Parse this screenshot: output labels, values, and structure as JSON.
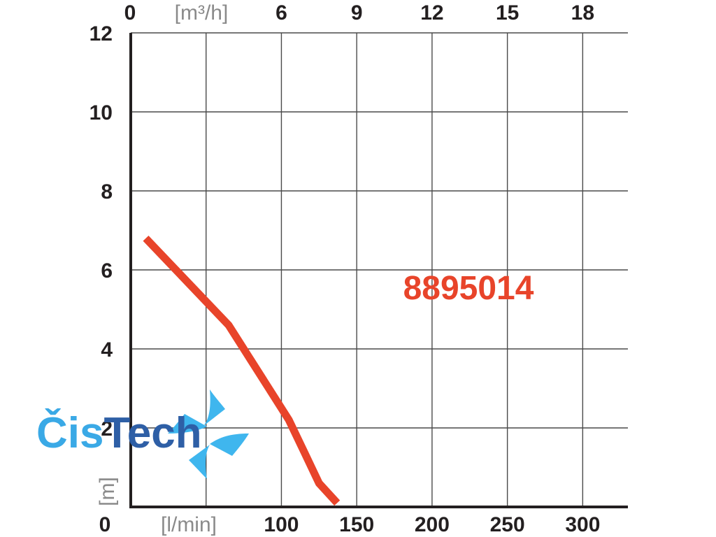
{
  "chart_data": {
    "type": "line",
    "series": [
      {
        "name": "8895014",
        "color": "#e8442a",
        "x": [
          10,
          50,
          65,
          80,
          95,
          105,
          115,
          125,
          137
        ],
        "y": [
          6.8,
          5.2,
          4.6,
          3.7,
          2.8,
          2.2,
          1.4,
          0.6,
          0.1
        ]
      }
    ],
    "x_axis": {
      "label": "[l/min]",
      "range": [
        0,
        330
      ],
      "ticks": [
        0,
        100,
        150,
        200,
        250,
        300
      ],
      "tick_labels": [
        "0",
        "100",
        "150",
        "200",
        "250",
        "300"
      ]
    },
    "x2_axis": {
      "label": "[m³/h]",
      "ticks": [
        0,
        6,
        9,
        12,
        15,
        18
      ],
      "tick_labels": [
        "0",
        "6",
        "9",
        "12",
        "15",
        "18"
      ]
    },
    "y_axis": {
      "label": "[m]",
      "range": [
        0,
        12
      ],
      "ticks": [
        2,
        4,
        6,
        8,
        10,
        12
      ],
      "tick_labels": [
        "2",
        "4",
        "6",
        "8",
        "10",
        "12"
      ]
    },
    "grid": true,
    "annotations": [
      {
        "text": "8895014",
        "color": "#e8442a"
      }
    ]
  },
  "logo": {
    "text_part1": "Čis",
    "text_part2": "Tech",
    "color1": "#3aa9e6",
    "color2": "#2e5fa6",
    "mark_color": "#3fb6ee"
  }
}
